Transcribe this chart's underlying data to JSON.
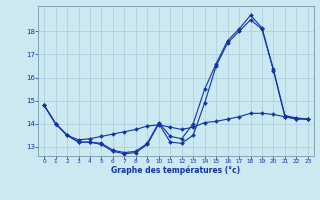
{
  "xlabel": "Graphe des températures (°c)",
  "background_color": "#cce8f0",
  "grid_color": "#aaccdd",
  "line_color": "#1133aa",
  "xlim": [
    -0.5,
    23.5
  ],
  "ylim": [
    12.6,
    19.1
  ],
  "yticks": [
    13,
    14,
    15,
    16,
    17,
    18
  ],
  "xticks": [
    0,
    1,
    2,
    3,
    4,
    5,
    6,
    7,
    8,
    9,
    10,
    11,
    12,
    13,
    14,
    15,
    16,
    17,
    18,
    19,
    20,
    21,
    22,
    23
  ],
  "series1_x": [
    0,
    1,
    2,
    3,
    4,
    5,
    6,
    7,
    8,
    9,
    10,
    11,
    12,
    13,
    14,
    15,
    16,
    17,
    18,
    19,
    20,
    21,
    22,
    23
  ],
  "series1_y": [
    14.8,
    14.0,
    13.5,
    13.2,
    13.2,
    13.1,
    12.8,
    12.7,
    12.75,
    13.1,
    14.0,
    13.2,
    13.15,
    13.5,
    14.9,
    16.5,
    17.5,
    18.0,
    18.5,
    18.1,
    16.3,
    14.3,
    14.2,
    14.2
  ],
  "series2_x": [
    0,
    1,
    2,
    3,
    4,
    5,
    6,
    7,
    8,
    9,
    10,
    11,
    12,
    13,
    14,
    15,
    16,
    17,
    18,
    19,
    20,
    21,
    22,
    23
  ],
  "series2_y": [
    14.8,
    14.0,
    13.5,
    13.2,
    13.2,
    13.15,
    12.85,
    12.75,
    12.8,
    13.15,
    14.05,
    13.45,
    13.35,
    14.0,
    15.5,
    16.6,
    17.6,
    18.1,
    18.7,
    18.15,
    16.35,
    14.35,
    14.25,
    14.2
  ],
  "series3_x": [
    0,
    1,
    2,
    3,
    4,
    5,
    6,
    7,
    8,
    9,
    10,
    11,
    12,
    13,
    14,
    15,
    16,
    17,
    18,
    19,
    20,
    21,
    22,
    23
  ],
  "series3_y": [
    14.8,
    14.0,
    13.5,
    13.3,
    13.35,
    13.45,
    13.55,
    13.65,
    13.75,
    13.9,
    13.95,
    13.85,
    13.75,
    13.85,
    14.05,
    14.1,
    14.2,
    14.3,
    14.45,
    14.45,
    14.4,
    14.3,
    14.22,
    14.2
  ]
}
